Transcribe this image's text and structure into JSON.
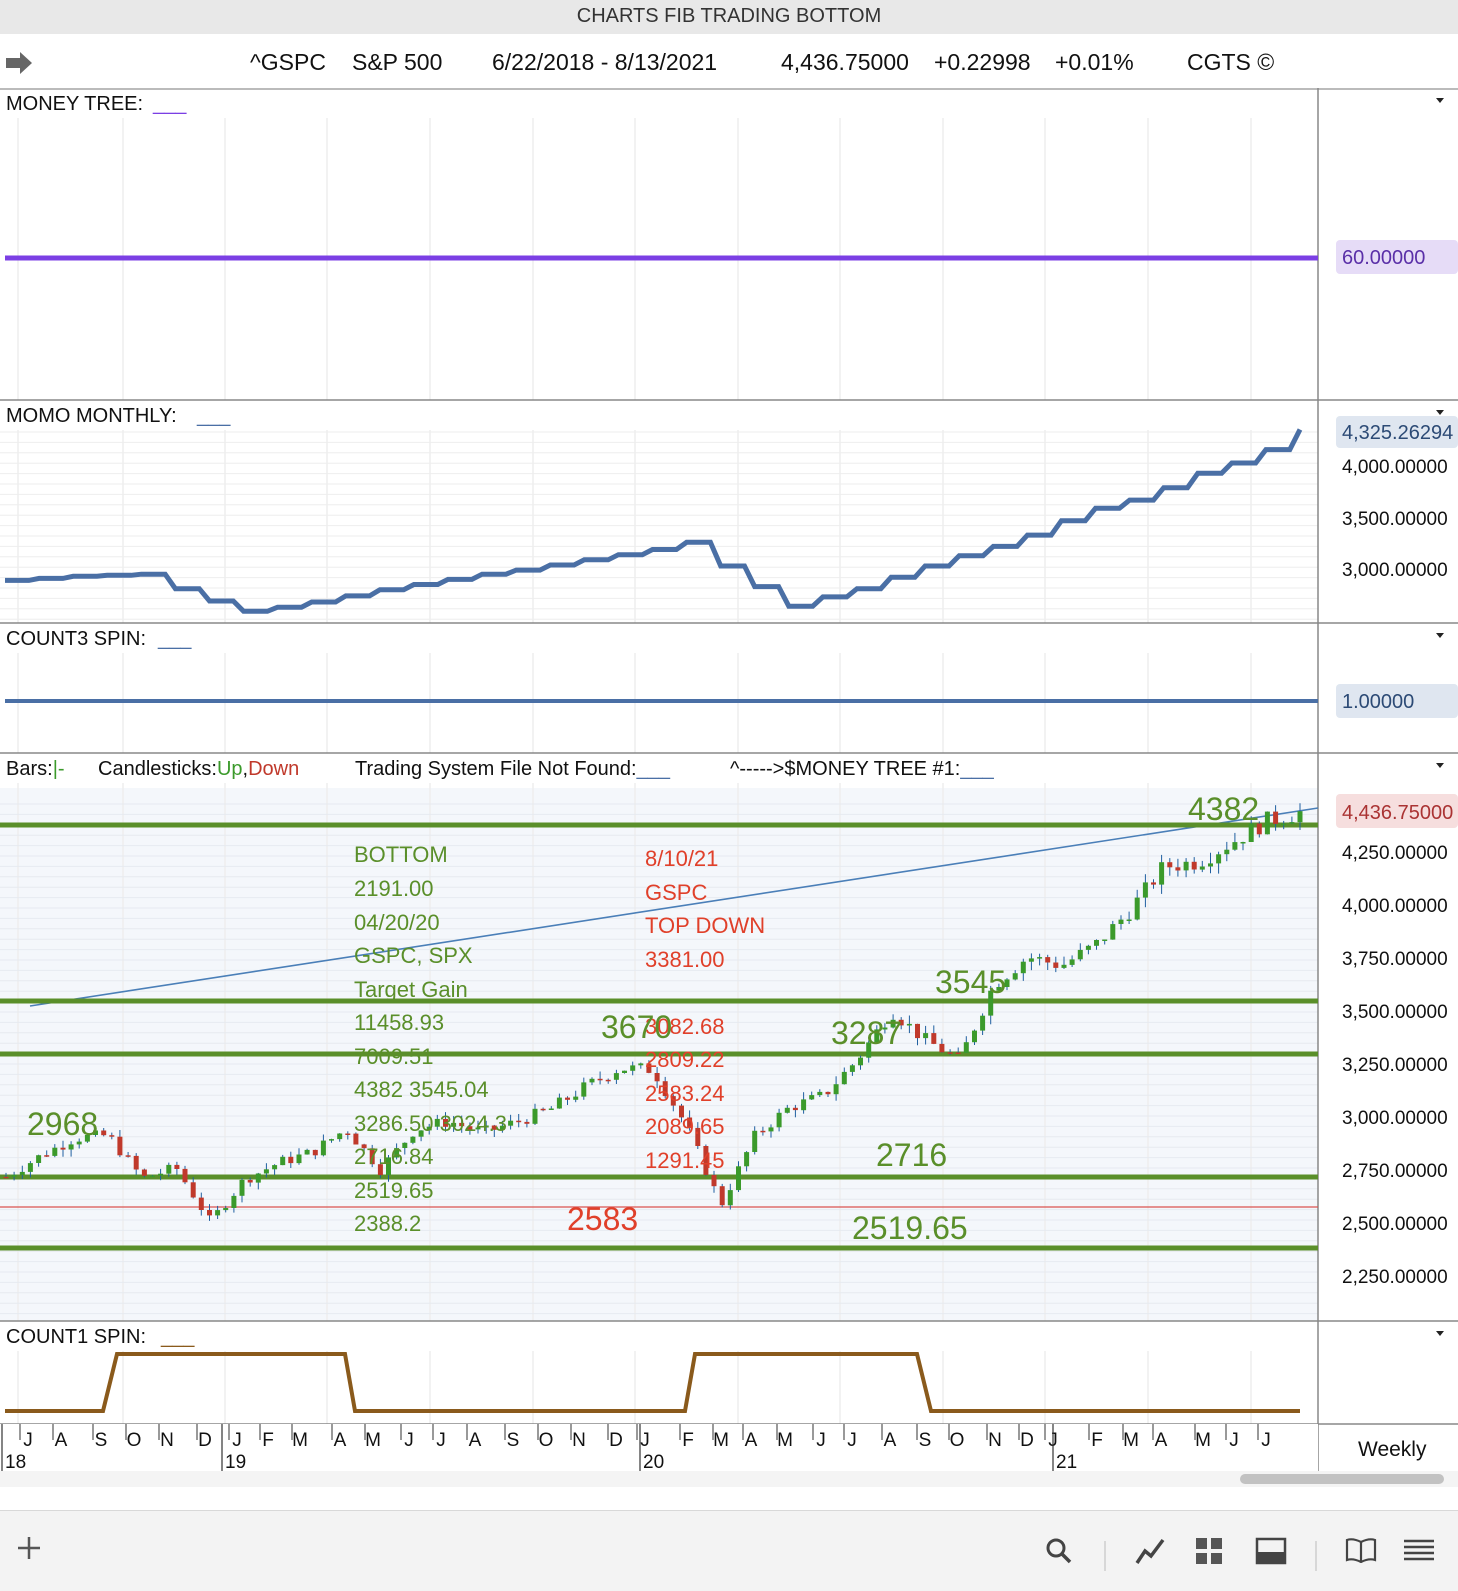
{
  "window": {
    "title": "CHARTS FIB TRADING BOTTOM"
  },
  "header": {
    "symbol": "^GSPC",
    "name": "S&P 500",
    "date_range": "6/22/2018 - 8/13/2021",
    "last": "4,436.75000",
    "change": "+0.22998",
    "change_pct": "+0.01%",
    "brand": "CGTS ©"
  },
  "panels": {
    "money_tree": {
      "label": "MONEY TREE:",
      "line_label": "___",
      "value_tag": "60.00000",
      "color": "#7b3fe4"
    },
    "momo_monthly": {
      "label": "MOMO MONTHLY:",
      "line_label": "___",
      "value_tag": "4,325.26294",
      "ticks": [
        "4,000.00000",
        "3,500.00000",
        "3,000.00000"
      ],
      "color": "#4a6fa5"
    },
    "count3_spin": {
      "label": "COUNT3 SPIN:",
      "line_label": "___",
      "value_tag": "1.00000",
      "color": "#4a6fa5"
    },
    "price": {
      "legend": {
        "bars": "Bars:",
        "bars_sym": "|-",
        "candles": "Candlesticks:",
        "up": "Up",
        "comma": ",",
        "down": "Down",
        "system": "Trading System File Not Found:",
        "system_line": "___",
        "money_tree": "^----->$MONEY TREE #1:",
        "money_tree_line": "___"
      },
      "value_tag": "4,436.75000",
      "ticks": [
        "4,250.00000",
        "4,000.00000",
        "3,750.00000",
        "3,500.00000",
        "3,250.00000",
        "3,000.00000",
        "2,750.00000",
        "2,500.00000",
        "2,250.00000"
      ],
      "up_color": "#3b9a2b",
      "down_color": "#c0392b"
    },
    "count1_spin": {
      "label": "COUNT1 SPIN:",
      "line_label": "___",
      "color": "#8a5a1c"
    }
  },
  "annotations": {
    "green_block": [
      "BOTTOM",
      "2191.00",
      "04/20/20",
      "GSPC, SPX",
      "Target Gain",
      "11458.93",
      "7009.51",
      "4382 3545.04",
      "3286.50 3024.3",
      "2716.84",
      "2519.65",
      "2388.2"
    ],
    "red_block": [
      "8/10/21",
      "GSPC",
      "TOP DOWN",
      "3381.00",
      "3082.68",
      "2809.22",
      "2583.24",
      "2089.65",
      "1291.45"
    ],
    "levels": {
      "l4382": "4382",
      "l3545": "3545",
      "l3670": "3670",
      "l3287": "3287",
      "l2968": "2968",
      "l2716": "2716",
      "l2583": "2583",
      "l2519": "2519.65"
    }
  },
  "xaxis": {
    "months": [
      "J",
      "A",
      "S",
      "O",
      "N",
      "D",
      "J",
      "F",
      "M",
      "A",
      "M",
      "J",
      "J",
      "A",
      "S",
      "O",
      "N",
      "D",
      "J",
      "F",
      "M",
      "A",
      "M",
      "J",
      "J",
      "A",
      "S",
      "O",
      "N",
      "D",
      "J",
      "F",
      "M",
      "A",
      "M",
      "J",
      "J"
    ],
    "years": [
      "18",
      "19",
      "20",
      "21"
    ],
    "period": "Weekly"
  },
  "chart_data": [
    {
      "type": "line",
      "title": "MONEY TREE",
      "series": [
        {
          "name": "MONEY TREE",
          "values": [
            60,
            60
          ]
        }
      ],
      "x": [
        "6/22/2018",
        "8/13/2021"
      ]
    },
    {
      "type": "line",
      "title": "MOMO MONTHLY",
      "series": [
        {
          "name": "MOMO MONTHLY",
          "x": [
            "2018-06",
            "2018-07",
            "2018-08",
            "2018-09",
            "2018-10",
            "2018-11",
            "2018-12",
            "2019-01",
            "2019-02",
            "2019-03",
            "2019-04",
            "2019-05",
            "2019-06",
            "2019-07",
            "2019-08",
            "2019-09",
            "2019-10",
            "2019-11",
            "2019-12",
            "2020-01",
            "2020-02",
            "2020-03",
            "2020-04",
            "2020-05",
            "2020-06",
            "2020-07",
            "2020-08",
            "2020-09",
            "2020-10",
            "2020-11",
            "2020-12",
            "2021-01",
            "2021-02",
            "2021-03",
            "2021-04",
            "2021-05",
            "2021-06",
            "2021-07",
            "2021-08"
          ],
          "values": [
            2860,
            2880,
            2900,
            2910,
            2920,
            2780,
            2660,
            2560,
            2600,
            2650,
            2710,
            2770,
            2820,
            2870,
            2920,
            2960,
            3010,
            3060,
            3110,
            3160,
            3230,
            3000,
            2800,
            2610,
            2700,
            2780,
            2890,
            3000,
            3100,
            3190,
            3300,
            3440,
            3560,
            3640,
            3760,
            3900,
            4000,
            4130,
            4325
          ]
        }
      ]
    },
    {
      "type": "line",
      "title": "COUNT3 SPIN",
      "series": [
        {
          "name": "COUNT3 SPIN",
          "values": [
            1,
            1
          ]
        }
      ],
      "x": [
        "6/22/2018",
        "8/13/2021"
      ]
    },
    {
      "type": "line",
      "title": "S&P 500 Weekly",
      "ylim": [
        2100,
        4520
      ],
      "series": [
        {
          "name": "^GSPC close",
          "x": [
            "2018-06",
            "2018-07",
            "2018-08",
            "2018-09",
            "2018-10",
            "2018-11",
            "2018-12",
            "2019-01",
            "2019-02",
            "2019-03",
            "2019-04",
            "2019-05",
            "2019-06",
            "2019-07",
            "2019-08",
            "2019-09",
            "2019-10",
            "2019-11",
            "2019-12",
            "2020-01",
            "2020-02",
            "2020-03",
            "2020-04",
            "2020-05",
            "2020-06",
            "2020-07",
            "2020-08",
            "2020-09",
            "2020-10",
            "2020-11",
            "2020-12",
            "2021-01",
            "2021-02",
            "2021-03",
            "2021-04",
            "2021-05",
            "2021-06",
            "2021-07",
            "2021-08"
          ],
          "values": [
            2718,
            2815,
            2900,
            2913,
            2711,
            2760,
            2506,
            2704,
            2784,
            2834,
            2945,
            2752,
            2941,
            2980,
            2926,
            2977,
            3037,
            3141,
            3230,
            3225,
            2954,
            2585,
            2912,
            3044,
            3100,
            3271,
            3500,
            3363,
            3270,
            3622,
            3756,
            3714,
            3811,
            3973,
            4181,
            4204,
            4297,
            4395,
            4437
          ]
        }
      ],
      "levels": [
        4382,
        3545,
        3287,
        2716,
        2583,
        2388.2
      ]
    },
    {
      "type": "line",
      "title": "COUNT1 SPIN",
      "series": [
        {
          "name": "COUNT1 SPIN",
          "x": [
            "2018-06",
            "2018-09",
            "2018-10",
            "2019-03",
            "2019-04",
            "2020-01",
            "2020-02",
            "2020-08",
            "2020-09",
            "2021-08"
          ],
          "values": [
            0,
            0,
            1,
            1,
            0,
            0,
            1,
            1,
            0,
            0
          ]
        }
      ]
    }
  ]
}
